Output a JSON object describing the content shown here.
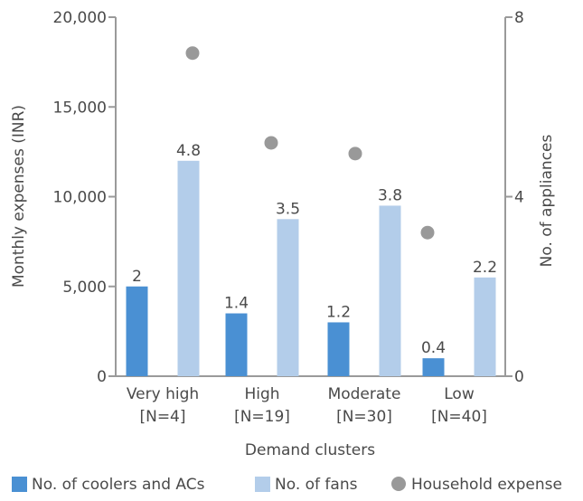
{
  "chart_data": {
    "type": "bar",
    "title": "",
    "xlabel": "Demand clusters",
    "ylabel_left": "Monthly expenses (INR)",
    "ylabel_right": "No. of appliances",
    "categories": [
      [
        "Very high",
        "[N=4]"
      ],
      [
        "High",
        "[N=19]"
      ],
      [
        "Moderate",
        "[N=30]"
      ],
      [
        "Low",
        "[N=40]"
      ]
    ],
    "left_axis": {
      "ylim": [
        0,
        20000
      ],
      "ticks": [
        0,
        5000,
        10000,
        15000,
        20000
      ],
      "tick_labels": [
        "0",
        "5,000",
        "10,000",
        "15,000",
        "20,000"
      ]
    },
    "right_axis": {
      "ylim": [
        0,
        8
      ],
      "ticks": [
        0,
        4,
        8
      ],
      "tick_labels": [
        "0",
        "4",
        "8"
      ]
    },
    "series": [
      {
        "name": "No. of coolers and ACs",
        "kind": "bar",
        "axis": "right",
        "color": "#4a90d3",
        "values": [
          2,
          1.4,
          1.2,
          0.4
        ],
        "labels": [
          "2",
          "1.4",
          "1.2",
          "0.4"
        ]
      },
      {
        "name": "No. of fans",
        "kind": "bar",
        "axis": "right",
        "color": "#b3cdea",
        "values": [
          4.8,
          3.5,
          3.8,
          2.2
        ],
        "labels": [
          "4.8",
          "3.5",
          "3.8",
          "2.2"
        ]
      },
      {
        "name": "Household expense",
        "kind": "point",
        "axis": "left",
        "color": "#999999",
        "values": [
          18000,
          13000,
          12400,
          8000
        ]
      }
    ],
    "axis_color": "#9a9a9a",
    "grid": false,
    "legend_position": "bottom"
  }
}
